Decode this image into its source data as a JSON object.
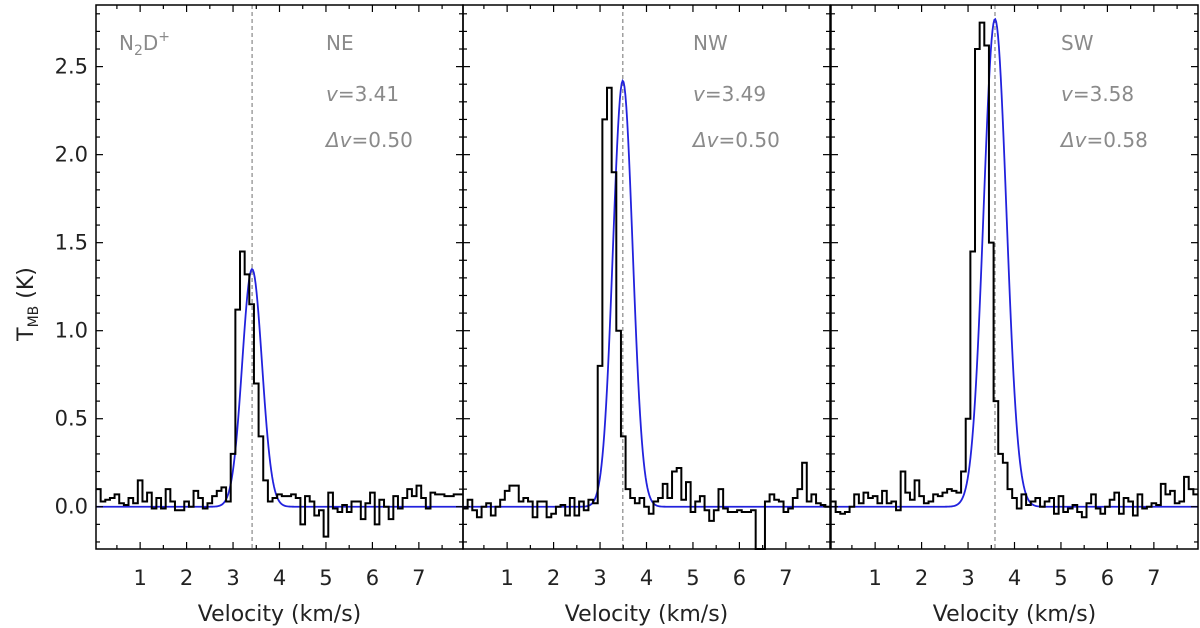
{
  "figure": {
    "ylabel_main": "T",
    "ylabel_sub": "MB",
    "ylabel_unit": " (K)",
    "molecule_main": "N",
    "molecule_sub": "2",
    "molecule_tail": "D",
    "molecule_sup": "+"
  },
  "chart_data": [
    {
      "type": "line",
      "panel": "NE",
      "xlabel": "Velocity (km/s)",
      "ylabel": "T_MB (K)",
      "xlim": [
        0.05,
        7.95
      ],
      "ylim": [
        -0.24,
        2.85
      ],
      "xticks": [
        1,
        2,
        3,
        4,
        5,
        6,
        7
      ],
      "yticks": [
        0.0,
        0.5,
        1.0,
        1.5,
        2.0,
        2.5
      ],
      "ytick_labels": [
        "0.0",
        "0.5",
        "1.0",
        "1.5",
        "2.0",
        "2.5"
      ],
      "grid": false,
      "annotations": {
        "region": "NE",
        "v_label": "v",
        "v": "=3.41",
        "dv_label": "Δv",
        "dv": "=0.50"
      },
      "center_line": 3.41,
      "fit": {
        "amplitude": 1.35,
        "center": 3.41,
        "fwhm": 0.5,
        "color": "#2222dd"
      },
      "series": [
        {
          "style": "steps",
          "color": "#000000",
          "x0": 0.05,
          "dx": 0.1,
          "values": [
            0.1,
            0.03,
            0.04,
            0.05,
            0.07,
            0.02,
            0.01,
            0.05,
            0.02,
            0.15,
            0.03,
            0.08,
            -0.01,
            0.05,
            -0.01,
            0.1,
            0.03,
            -0.02,
            -0.02,
            0.03,
            0.0,
            0.09,
            0.05,
            -0.01,
            0.02,
            0.06,
            0.09,
            0.11,
            0.03,
            0.3,
            1.12,
            1.45,
            1.32,
            1.15,
            0.7,
            0.4,
            0.15,
            0.03,
            0.05,
            0.07,
            0.06,
            0.06,
            0.07,
            0.05,
            -0.1,
            0.06,
            0.03,
            -0.05,
            -0.02,
            -0.17,
            0.08,
            -0.01,
            -0.03,
            0.01,
            -0.03,
            0.03,
            0.03,
            -0.07,
            0.02,
            0.08,
            -0.1,
            0.04,
            0.0,
            -0.07,
            0.06,
            -0.01,
            0.05,
            0.1,
            0.06,
            0.12,
            0.05,
            -0.01,
            0.08,
            0.07,
            0.07,
            0.06,
            0.06,
            0.07,
            0.07
          ]
        }
      ]
    },
    {
      "type": "line",
      "panel": "NW",
      "xlabel": "Velocity (km/s)",
      "xlim": [
        0.05,
        7.95
      ],
      "ylim": [
        -0.24,
        2.85
      ],
      "xticks": [
        1,
        2,
        3,
        4,
        5,
        6,
        7
      ],
      "grid": false,
      "annotations": {
        "region": "NW",
        "v_label": "v",
        "v": "=3.49",
        "dv_label": "Δv",
        "dv": "=0.50"
      },
      "center_line": 3.49,
      "fit": {
        "amplitude": 2.42,
        "center": 3.49,
        "fwhm": 0.5,
        "color": "#2222dd"
      },
      "series": [
        {
          "style": "steps",
          "color": "#000000",
          "x0": 0.05,
          "dx": 0.1,
          "values": [
            -0.01,
            0.04,
            -0.02,
            -0.06,
            0.0,
            0.02,
            -0.05,
            0.0,
            0.04,
            0.09,
            0.12,
            0.12,
            0.03,
            0.05,
            0.03,
            -0.06,
            0.03,
            0.03,
            -0.06,
            -0.04,
            0.0,
            0.01,
            -0.05,
            0.05,
            -0.05,
            0.03,
            -0.02,
            0.04,
            0.02,
            0.8,
            2.2,
            2.38,
            1.9,
            1.0,
            0.4,
            0.1,
            0.05,
            0.02,
            0.05,
            0.0,
            -0.04,
            0.03,
            0.05,
            0.13,
            0.05,
            0.2,
            0.22,
            0.04,
            0.14,
            -0.03,
            0.03,
            0.06,
            -0.02,
            -0.08,
            -0.02,
            0.1,
            -0.01,
            -0.03,
            -0.03,
            -0.02,
            -0.03,
            -0.03,
            -0.02,
            -0.25,
            -0.3,
            0.03,
            0.07,
            0.04,
            0.03,
            -0.03,
            -0.01,
            0.05,
            0.1,
            0.25,
            0.03,
            0.07,
            0.02,
            0.01,
            0.0
          ]
        }
      ]
    },
    {
      "type": "line",
      "panel": "SW",
      "xlabel": "Velocity (km/s)",
      "xlim": [
        0.05,
        7.95
      ],
      "ylim": [
        -0.24,
        2.85
      ],
      "xticks": [
        1,
        2,
        3,
        4,
        5,
        6,
        7
      ],
      "grid": false,
      "annotations": {
        "region": "SW",
        "v_label": "v",
        "v": "=3.58",
        "dv_label": "Δv",
        "dv": "=0.58"
      },
      "center_line": 3.58,
      "fit": {
        "amplitude": 2.77,
        "center": 3.58,
        "fwhm": 0.58,
        "color": "#2222dd"
      },
      "series": [
        {
          "style": "steps",
          "color": "#000000",
          "x0": 0.05,
          "dx": 0.1,
          "values": [
            0.03,
            -0.03,
            -0.04,
            -0.03,
            0.0,
            0.07,
            0.02,
            0.08,
            0.05,
            0.06,
            0.02,
            0.09,
            0.02,
            0.03,
            -0.02,
            0.2,
            0.08,
            0.04,
            0.15,
            0.06,
            0.02,
            0.03,
            0.07,
            0.06,
            0.08,
            0.1,
            0.09,
            0.08,
            0.2,
            0.5,
            1.45,
            2.6,
            2.75,
            2.62,
            1.5,
            0.6,
            0.3,
            0.25,
            0.1,
            0.05,
            -0.01,
            0.07,
            0.01,
            0.03,
            0.05,
            0.0,
            0.03,
            0.05,
            -0.04,
            0.06,
            -0.03,
            -0.01,
            0.01,
            -0.03,
            -0.06,
            0.02,
            0.07,
            -0.01,
            -0.04,
            0.0,
            0.04,
            0.08,
            -0.04,
            0.05,
            0.03,
            -0.05,
            0.07,
            -0.01,
            0.0,
            0.02,
            0.01,
            0.13,
            0.07,
            0.09,
            0.02,
            0.03,
            0.17,
            0.1,
            0.07
          ]
        }
      ]
    }
  ]
}
